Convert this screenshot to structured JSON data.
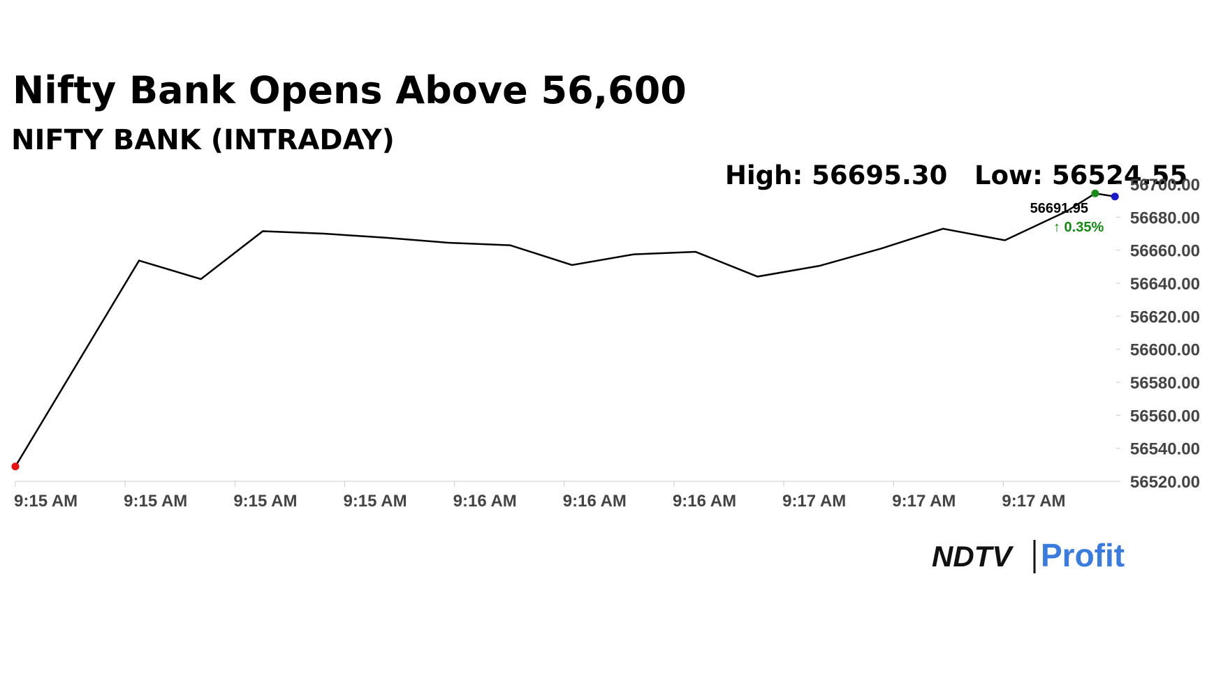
{
  "chart_data": {
    "type": "line",
    "title": "Nifty Bank Opens Above 56,600",
    "subtitle": "NIFTY BANK (INTRADAY)",
    "high_label": "High: 56695.30",
    "low_label": "Low: 56524.55",
    "last_value": "56691.95",
    "change": "↑ 0.35%",
    "brand": [
      "NDTV",
      "Profit"
    ],
    "series": [
      {
        "color": "#000000",
        "x": [
          0,
          2,
          3,
          4,
          5,
          6,
          7,
          8,
          9,
          10,
          11,
          12,
          13,
          14,
          15,
          16,
          17,
          17.46,
          17.78
        ],
        "values": [
          56529,
          56653.7,
          56642.5,
          56671.5,
          56670,
          56667.5,
          56664.5,
          56663,
          56651,
          56657.5,
          56659,
          56644,
          56650.5,
          56661,
          56673,
          56666,
          56683.6,
          56694.4,
          56692.5
        ]
      }
    ],
    "start_marker_color": "#e81010",
    "high_marker_color": "#1a8a1a",
    "end_marker_color": "#1a1acc",
    "change_color": "#128a12",
    "xlim": [
      0,
      17.8
    ],
    "xticks": [
      {
        "value": 0,
        "label": "9:15 AM"
      },
      {
        "value": 1.775,
        "label": "9:15 AM"
      },
      {
        "value": 3.55,
        "label": "9:15 AM"
      },
      {
        "value": 5.325,
        "label": "9:15 AM"
      },
      {
        "value": 7.1,
        "label": "9:16 AM"
      },
      {
        "value": 8.875,
        "label": "9:16 AM"
      },
      {
        "value": 10.65,
        "label": "9:16 AM"
      },
      {
        "value": 12.425,
        "label": "9:17 AM"
      },
      {
        "value": 14.2,
        "label": "9:17 AM"
      },
      {
        "value": 15.975,
        "label": "9:17 AM"
      }
    ],
    "ylim": [
      56520,
      56700
    ],
    "yticks": [
      {
        "value": 56520,
        "label": "56520.00"
      },
      {
        "value": 56540,
        "label": "56540.00"
      },
      {
        "value": 56560,
        "label": "56560.00"
      },
      {
        "value": 56580,
        "label": "56580.00"
      },
      {
        "value": 56600,
        "label": "56600.00"
      },
      {
        "value": 56620,
        "label": "56620.00"
      },
      {
        "value": 56640,
        "label": "56640.00"
      },
      {
        "value": 56660,
        "label": "56660.00"
      },
      {
        "value": 56680,
        "label": "56680.00"
      },
      {
        "value": 56700,
        "label": "56700.00"
      }
    ]
  }
}
